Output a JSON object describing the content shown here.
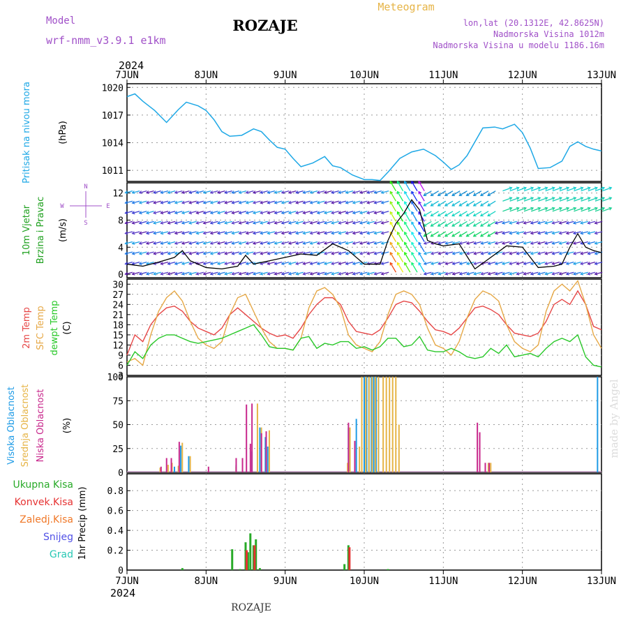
{
  "header": {
    "model_label": "Model",
    "model_name": "wrf-nmm_v3.9.1  e1km",
    "station": "ROZAJE",
    "product": "Meteogram",
    "coords": "lon,lat (20.1312E, 42.8625N)",
    "elevation": "Nadmorska Visina 1012m",
    "model_elevation": "Nadmorska Visina u modelu 1186.16m",
    "year": "2024"
  },
  "footer": {
    "year": "2024",
    "station": "ROZAJE",
    "credit": "made by Angel"
  },
  "colors": {
    "pressure": "#1ea8e6",
    "wind": "#1ea01e",
    "wind_speed_line": "#000000",
    "temp2m": "#e64646",
    "sfc_temp": "#e6a846",
    "dewpt": "#28c828",
    "cloud_high": "#1e9be6",
    "cloud_mid": "#e6b446",
    "cloud_low": "#c8288c",
    "precip_total": "#28aa28",
    "precip_conv": "#e63232",
    "precip_frozen": "#f07828",
    "snow": "#5050e6",
    "graupel": "#28c8b4",
    "direction_legend": "#a050c8"
  },
  "direction_legend": {
    "north": "N",
    "south": "S",
    "east": "E",
    "west": "W"
  },
  "x_ticks": [
    "7JUN",
    "8JUN",
    "9JUN",
    "10JUN",
    "11JUN",
    "12JUN",
    "13JUN"
  ],
  "chart_data": [
    {
      "type": "line",
      "id": "pressure",
      "ylabel_name": "Pritisak na nivou mora",
      "ylabel_unit": "(hPa)",
      "yticks": [
        1011,
        1014,
        1017,
        1020
      ],
      "ylim": [
        1009.8,
        1020.4
      ],
      "x_days": [
        0,
        0.1,
        0.2,
        0.35,
        0.5,
        0.65,
        0.75,
        0.9,
        1.0,
        1.1,
        1.2,
        1.3,
        1.45,
        1.6,
        1.7,
        1.8,
        1.9,
        2.0,
        2.1,
        2.2,
        2.35,
        2.5,
        2.6,
        2.7,
        2.85,
        3.0,
        3.1,
        3.2,
        3.3,
        3.45,
        3.6,
        3.75,
        3.9,
        4.0,
        4.1,
        4.2,
        4.3,
        4.5,
        4.65,
        4.75,
        4.9,
        5.0,
        5.1,
        5.2,
        5.35,
        5.5,
        5.6,
        5.7,
        5.8,
        5.9,
        6.0
      ],
      "series": [
        {
          "values": [
            1019.0,
            1019.3,
            1018.5,
            1017.5,
            1016.2,
            1017.6,
            1018.4,
            1018.0,
            1017.5,
            1016.5,
            1015.2,
            1014.7,
            1014.8,
            1015.5,
            1015.2,
            1014.3,
            1013.5,
            1013.3,
            1012.3,
            1011.4,
            1011.8,
            1012.5,
            1011.5,
            1011.3,
            1010.5,
            1010.0,
            1010.0,
            1009.9,
            1010.8,
            1012.3,
            1013.0,
            1013.3,
            1012.6,
            1011.9,
            1011.1,
            1011.6,
            1012.6,
            1015.6,
            1015.7,
            1015.5,
            1016.0,
            1015.1,
            1013.4,
            1011.2,
            1011.3,
            1012.0,
            1013.6,
            1014.1,
            1013.6,
            1013.3,
            1013.1
          ]
        }
      ]
    },
    {
      "type": "line",
      "id": "wind",
      "ylabel_name": "10m Vjetar",
      "ylabel_name2": "Brzina i Pravac",
      "ylabel_unit": "(m/s)",
      "yticks": [
        0,
        4,
        8,
        12
      ],
      "ylim": [
        -0.5,
        13.5
      ],
      "x_days": [
        0,
        0.2,
        0.4,
        0.6,
        0.7,
        0.8,
        1.0,
        1.2,
        1.4,
        1.5,
        1.6,
        1.8,
        2.0,
        2.2,
        2.4,
        2.6,
        2.8,
        3.0,
        3.2,
        3.3,
        3.4,
        3.5,
        3.6,
        3.7,
        3.8,
        3.9,
        4.0,
        4.2,
        4.4,
        4.6,
        4.8,
        5.0,
        5.2,
        5.4,
        5.5,
        5.6,
        5.7,
        5.8,
        5.9,
        6.0
      ],
      "series": [
        {
          "name": "speed",
          "values": [
            1.5,
            1.2,
            1.8,
            2.5,
            3.5,
            2.0,
            1.0,
            0.8,
            1.2,
            2.8,
            1.5,
            2.0,
            2.5,
            3.0,
            2.8,
            4.5,
            3.5,
            1.5,
            1.5,
            5.0,
            7.5,
            9.0,
            11.0,
            9.5,
            5.0,
            4.5,
            4.2,
            4.5,
            0.8,
            2.5,
            4.2,
            4.0,
            1.0,
            1.2,
            1.5,
            4.0,
            6.0,
            4.0,
            3.5,
            3.2
          ]
        }
      ]
    },
    {
      "type": "line",
      "id": "temperature",
      "ylabel_name": "2m Temp",
      "ylabel_name2": "SFC Temp",
      "ylabel_name3": "dewpt Temp",
      "ylabel_unit": "(C)",
      "yticks": [
        3,
        6,
        9,
        12,
        15,
        18,
        21,
        24,
        27,
        30
      ],
      "ylim": [
        3,
        31.5
      ],
      "x_days": [
        0,
        0.1,
        0.2,
        0.3,
        0.4,
        0.5,
        0.6,
        0.7,
        0.8,
        0.9,
        1.0,
        1.1,
        1.2,
        1.3,
        1.4,
        1.5,
        1.6,
        1.7,
        1.8,
        1.9,
        2.0,
        2.1,
        2.2,
        2.3,
        2.4,
        2.5,
        2.6,
        2.7,
        2.8,
        2.9,
        3.0,
        3.1,
        3.2,
        3.3,
        3.4,
        3.5,
        3.6,
        3.7,
        3.8,
        3.9,
        4.0,
        4.1,
        4.2,
        4.3,
        4.4,
        4.5,
        4.6,
        4.7,
        4.8,
        4.9,
        5.0,
        5.1,
        5.2,
        5.3,
        5.4,
        5.5,
        5.6,
        5.7,
        5.8,
        5.9,
        6.0
      ],
      "series": [
        {
          "name": "2m Temp",
          "values": [
            9,
            15,
            13,
            18,
            21,
            23,
            23.5,
            22,
            19,
            17,
            16,
            15,
            17,
            21,
            23,
            21,
            19,
            17,
            15.5,
            14.5,
            15,
            14,
            17,
            21,
            24,
            26,
            26,
            24,
            19,
            16,
            15.5,
            15,
            16.5,
            20,
            24,
            25,
            24.5,
            22,
            19,
            16.5,
            16,
            15,
            17,
            20,
            23,
            23.5,
            22.5,
            21,
            18,
            15.5,
            15,
            14.5,
            15.5,
            19,
            24,
            25.5,
            24,
            28,
            24,
            17.5,
            16.5
          ]
        },
        {
          "name": "SFC Temp",
          "values": [
            7,
            8,
            6,
            15,
            22,
            26,
            28,
            25,
            19,
            14,
            12,
            11,
            13,
            21,
            26,
            27,
            22,
            17,
            13,
            11,
            11,
            10.5,
            14,
            23,
            28,
            29,
            27,
            23,
            15,
            12,
            11,
            10,
            13,
            21,
            27,
            28,
            27,
            24,
            17,
            12,
            11,
            9,
            13,
            20,
            25.5,
            28,
            27,
            25,
            18,
            13,
            11,
            10,
            12,
            22,
            28,
            30,
            28,
            31,
            24,
            15,
            11
          ]
        },
        {
          "name": "dewpt Temp",
          "values": [
            6,
            10,
            8,
            12,
            14,
            15,
            15,
            14,
            13,
            12.5,
            13,
            13.5,
            14,
            15,
            16,
            17,
            18,
            15,
            11.5,
            11,
            11,
            10.5,
            14,
            14.5,
            11,
            12.5,
            12,
            13,
            13,
            11,
            11.5,
            10.5,
            11.5,
            14,
            14,
            11.5,
            12,
            14.5,
            10.5,
            10,
            10,
            11,
            10,
            8.5,
            8,
            8.5,
            11,
            9.5,
            12,
            8.5,
            9,
            9.5,
            8.5,
            11,
            13,
            14,
            13,
            15,
            8.5,
            6,
            5.5
          ]
        }
      ]
    },
    {
      "type": "bar",
      "id": "clouds",
      "ylabel_name": "Visoka Oblacnost",
      "ylabel_name2": "Srednja Oblacnost",
      "ylabel_name3": "Niska Oblacnost",
      "ylabel_unit": "(%)",
      "yticks": [
        0,
        25,
        50,
        75,
        100
      ],
      "ylim": [
        0,
        100
      ],
      "series": [
        {
          "name": "Visoka Oblacnost",
          "points": [
            [
              0.6,
              6
            ],
            [
              0.68,
              28
            ],
            [
              0.78,
              17
            ],
            [
              1.38,
              8
            ],
            [
              1.58,
              22
            ],
            [
              1.68,
              47
            ],
            [
              1.75,
              37
            ],
            [
              1.78,
              27
            ],
            [
              2.8,
              47
            ],
            [
              2.9,
              56
            ],
            [
              3.0,
              100
            ],
            [
              3.03,
              100
            ],
            [
              3.06,
              100
            ],
            [
              3.09,
              100
            ],
            [
              3.12,
              100
            ],
            [
              3.15,
              100
            ],
            [
              3.18,
              100
            ],
            [
              5.95,
              100
            ]
          ]
        },
        {
          "name": "Srednja Oblacnost",
          "points": [
            [
              0.4,
              5
            ],
            [
              0.5,
              8
            ],
            [
              0.55,
              10
            ],
            [
              0.63,
              7
            ],
            [
              0.68,
              31
            ],
            [
              0.78,
              17
            ],
            [
              1.36,
              6
            ],
            [
              1.63,
              72
            ],
            [
              1.68,
              47
            ],
            [
              1.78,
              44
            ],
            [
              2.77,
              10
            ],
            [
              2.8,
              47
            ],
            [
              2.92,
              27
            ],
            [
              2.95,
              100
            ],
            [
              3.0,
              100
            ],
            [
              3.04,
              100
            ],
            [
              3.08,
              100
            ],
            [
              3.12,
              100
            ],
            [
              3.16,
              100
            ],
            [
              3.22,
              100
            ],
            [
              3.26,
              100
            ],
            [
              3.3,
              100
            ],
            [
              3.34,
              100
            ],
            [
              3.38,
              100
            ],
            [
              3.42,
              50
            ],
            [
              4.55,
              10
            ],
            [
              4.58,
              10
            ]
          ]
        },
        {
          "name": "Niska Oblacnost",
          "points": [
            [
              0.45,
              6
            ],
            [
              0.52,
              15
            ],
            [
              0.58,
              15
            ],
            [
              0.68,
              32
            ],
            [
              1.05,
              6
            ],
            [
              1.4,
              15
            ],
            [
              1.48,
              15
            ],
            [
              1.53,
              71
            ],
            [
              1.58,
              30
            ],
            [
              1.6,
              72
            ],
            [
              1.72,
              41
            ],
            [
              1.78,
              43
            ],
            [
              2.82,
              52
            ],
            [
              2.9,
              33
            ],
            [
              4.45,
              52
            ],
            [
              4.48,
              42
            ],
            [
              4.55,
              10
            ],
            [
              4.6,
              10
            ]
          ]
        }
      ]
    },
    {
      "type": "bar",
      "id": "precipitation",
      "ylabel_name": "1hr Precip (mm)",
      "legend": [
        "Ukupna Kisa",
        "Konvek.Kisa",
        "Zaledj.Kisa",
        "Snijeg",
        "Grad"
      ],
      "yticks": [
        0,
        0.2,
        0.4,
        0.6,
        0.8
      ],
      "ylim": [
        0,
        0.97
      ],
      "series": [
        {
          "name": "Ukupna Kisa",
          "points": [
            [
              0.7,
              0.02
            ],
            [
              1.33,
              0.21
            ],
            [
              1.43,
              0.01
            ],
            [
              1.5,
              0.28
            ],
            [
              1.53,
              0.18
            ],
            [
              1.56,
              0.37
            ],
            [
              1.6,
              0.25
            ],
            [
              1.63,
              0.31
            ],
            [
              1.68,
              0.02
            ],
            [
              2.75,
              0.06
            ],
            [
              2.8,
              0.25
            ],
            [
              3.3,
              0.01
            ]
          ]
        },
        {
          "name": "Konvek.Kisa",
          "points": [
            [
              1.5,
              0.2
            ],
            [
              1.6,
              0.25
            ],
            [
              2.8,
              0.23
            ]
          ]
        }
      ]
    }
  ]
}
